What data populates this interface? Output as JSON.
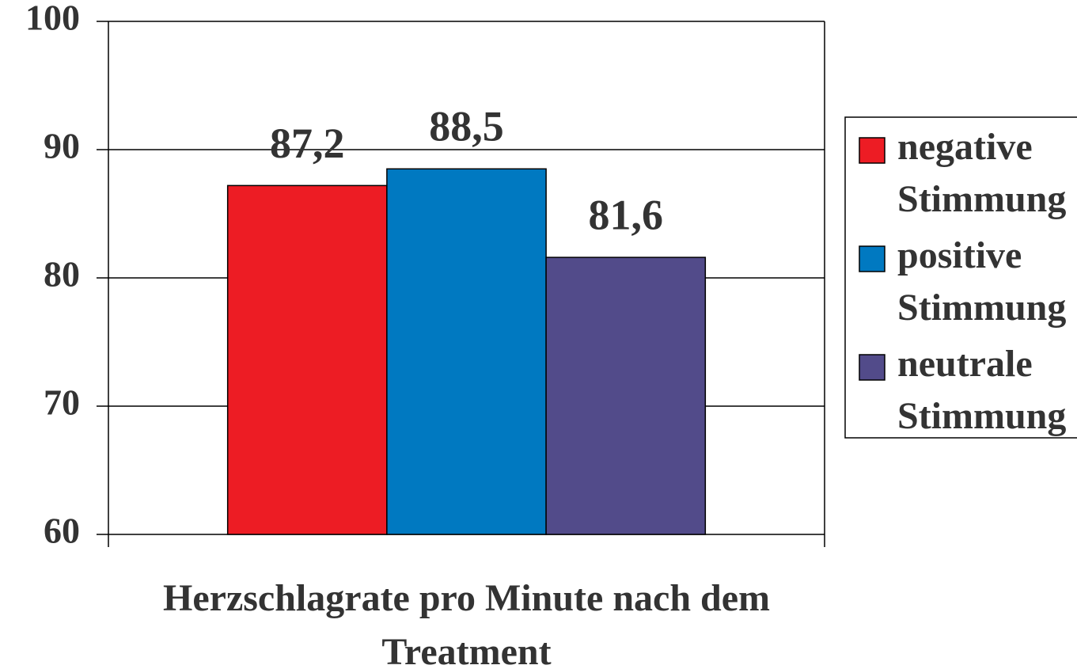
{
  "chart_data": {
    "type": "bar",
    "categories": [
      "Herzschlagrate pro Minute nach dem Treatment"
    ],
    "series": [
      {
        "name": "negative Stimmung",
        "color": "#ed1c24",
        "values": [
          87.2
        ],
        "value_labels": [
          "87,2"
        ]
      },
      {
        "name": "positive Stimmung",
        "color": "#0079c1",
        "values": [
          88.5
        ],
        "value_labels": [
          "88,5"
        ]
      },
      {
        "name": "neutrale Stimmung",
        "color": "#524b8a",
        "values": [
          81.6
        ],
        "value_labels": [
          "81,6"
        ]
      }
    ],
    "ylim": [
      60,
      100
    ],
    "yticks": [
      60,
      70,
      80,
      90,
      100
    ],
    "grid": true,
    "legend": "right"
  }
}
